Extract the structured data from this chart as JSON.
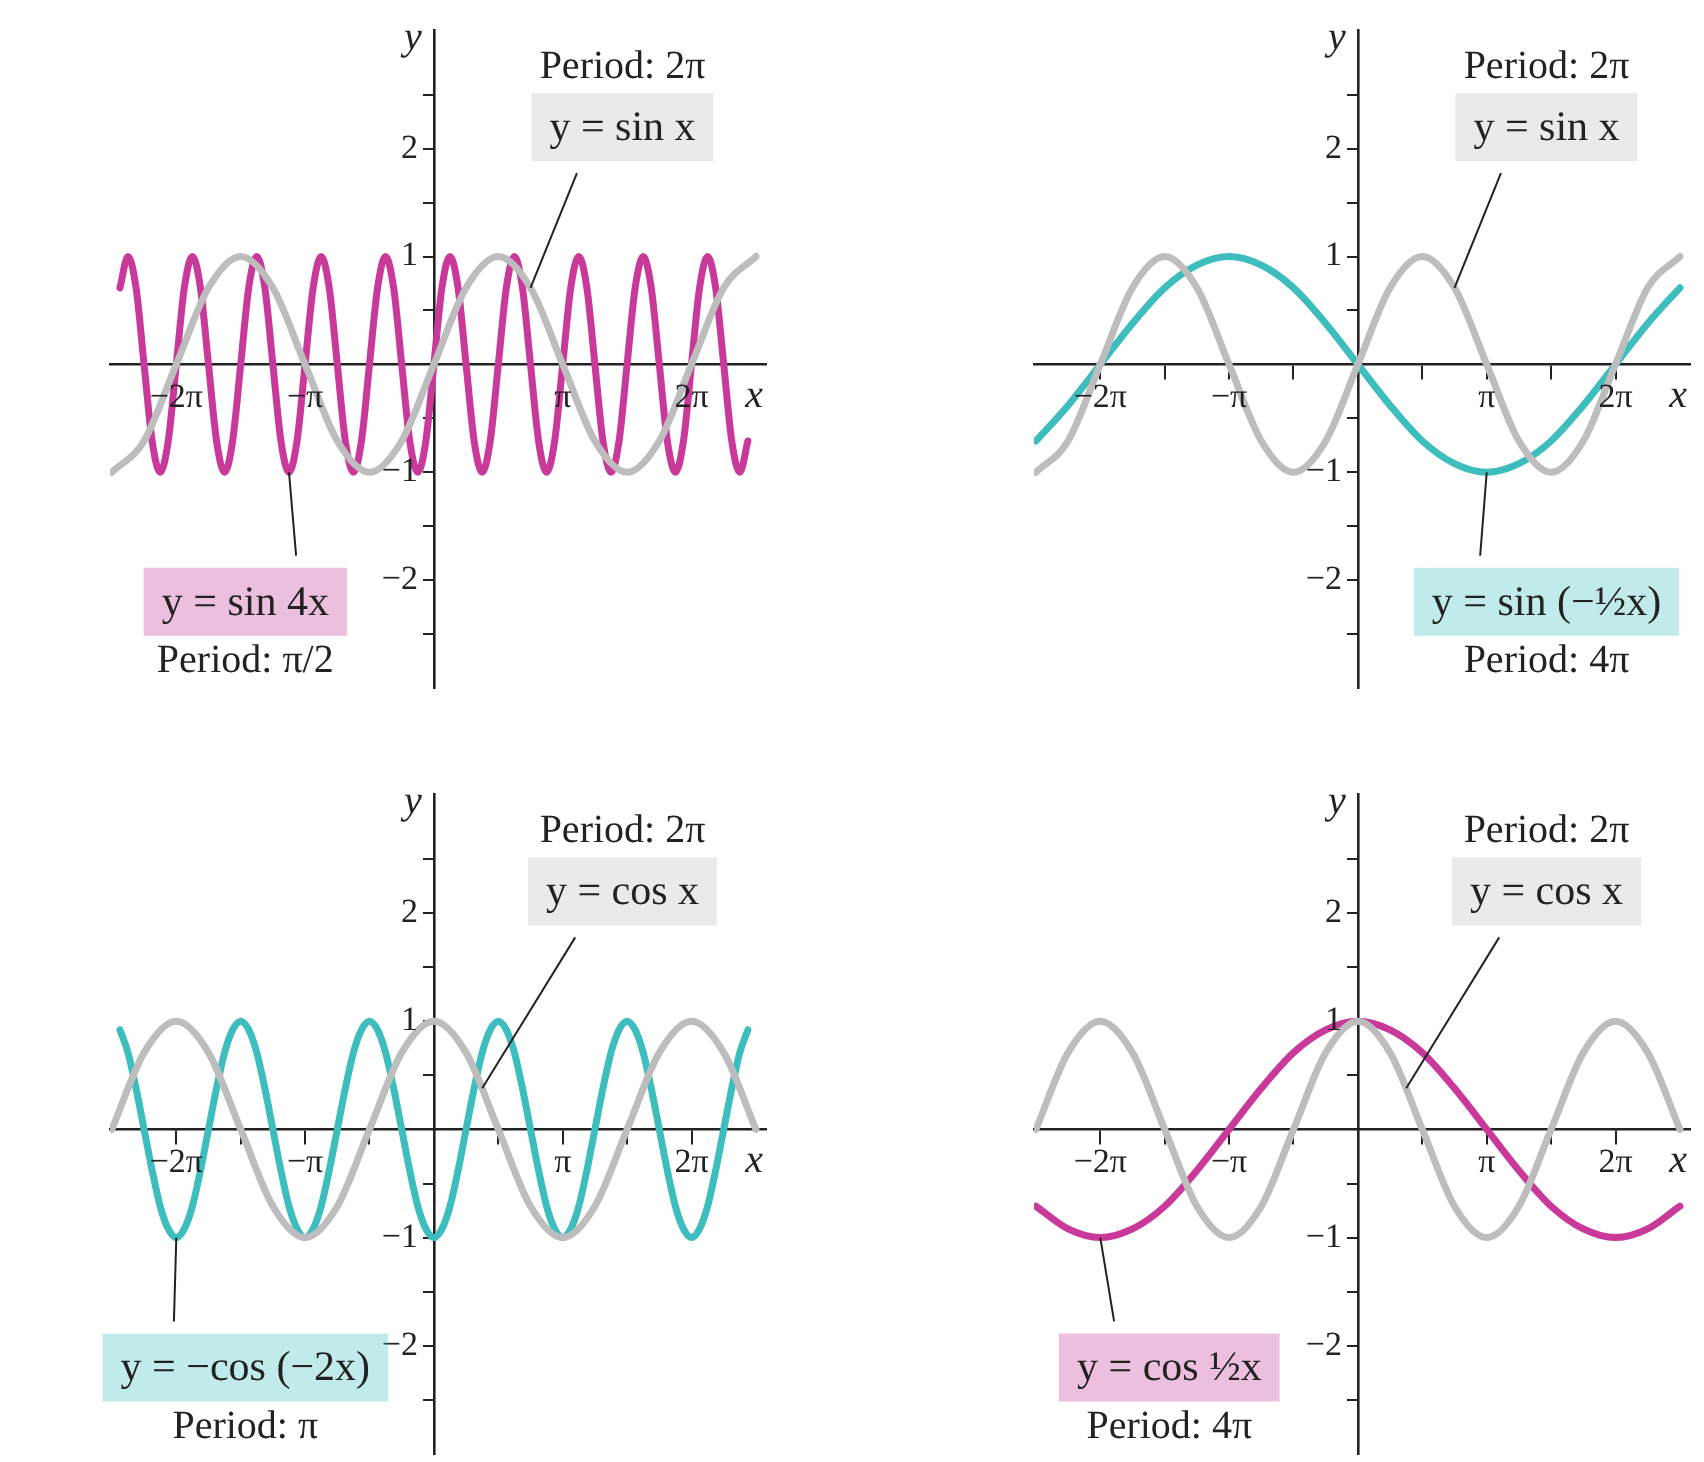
{
  "chart_data": [
    {
      "type": "line",
      "xlabel": "x",
      "ylabel": "y",
      "xlim": [
        -7.9,
        8.1
      ],
      "ylim": [
        -3,
        3.1
      ],
      "marker": "none",
      "xticks": [
        {
          "value": -6.283,
          "label": "−2π"
        },
        {
          "value": -4.712,
          "label": null
        },
        {
          "value": -3.142,
          "label": "−π"
        },
        {
          "value": -1.571,
          "label": null
        },
        {
          "value": 1.571,
          "label": null
        },
        {
          "value": 3.142,
          "label": "π"
        },
        {
          "value": 4.712,
          "label": null
        },
        {
          "value": 6.283,
          "label": "2π"
        }
      ],
      "yticks": [
        {
          "value": -2.5,
          "label": null
        },
        {
          "value": -2,
          "label": "−2"
        },
        {
          "value": -1.5,
          "label": null
        },
        {
          "value": -1,
          "label": "−1"
        },
        {
          "value": -0.5,
          "label": null
        },
        {
          "value": 0.5,
          "label": null
        },
        {
          "value": 1,
          "label": "1"
        },
        {
          "value": 1.5,
          "label": null
        },
        {
          "value": 2,
          "label": "2"
        },
        {
          "value": 2.5,
          "label": null
        }
      ],
      "series": [
        {
          "color": "#bdbdbd",
          "x": [
            -7.854,
            -7.069,
            -6.283,
            -5.498,
            -4.712,
            -3.927,
            -3.142,
            -2.356,
            -1.571,
            -0.785,
            0,
            0.785,
            1.571,
            2.356,
            3.142,
            3.927,
            4.712,
            5.498,
            6.283,
            7.069,
            7.854
          ],
          "values": [
            -1,
            -0.71,
            0,
            0.71,
            1,
            0.71,
            0,
            -0.71,
            -1,
            -0.71,
            0,
            0.71,
            1,
            0.71,
            0,
            -0.71,
            -1,
            -0.71,
            0,
            0.71,
            1
          ]
        },
        {
          "color": "#c8399a",
          "x": [
            -7.658,
            -7.461,
            -7.265,
            -7.069,
            -6.872,
            -6.676,
            -6.48,
            -6.283,
            -6.087,
            -5.89,
            -5.694,
            -5.498,
            -5.301,
            -5.105,
            -4.909,
            -4.712,
            -4.516,
            -4.32,
            -4.123,
            -3.927,
            -3.731,
            -3.534,
            -3.338,
            -3.142,
            -2.945,
            -2.749,
            -2.553,
            -2.356,
            -2.16,
            -1.963,
            -1.767,
            -1.571,
            -1.374,
            -1.178,
            -0.982,
            -0.785,
            -0.589,
            -0.393,
            -0.196,
            0,
            0.196,
            0.393,
            0.589,
            0.785,
            0.982,
            1.178,
            1.374,
            1.571,
            1.767,
            1.963,
            2.16,
            2.356,
            2.553,
            2.749,
            2.945,
            3.142,
            3.338,
            3.534,
            3.731,
            3.927,
            4.123,
            4.32,
            4.516,
            4.712,
            4.909,
            5.105,
            5.301,
            5.498,
            5.694,
            5.89,
            6.087,
            6.283,
            6.48,
            6.676,
            6.872,
            7.069,
            7.265,
            7.461,
            7.658
          ],
          "values": [
            0.71,
            1,
            0.71,
            0,
            -0.71,
            -1,
            -0.71,
            0,
            0.71,
            1,
            0.71,
            0,
            -0.71,
            -1,
            -0.71,
            0,
            0.71,
            1,
            0.71,
            0,
            -0.71,
            -1,
            -0.71,
            0,
            0.71,
            1,
            0.71,
            0,
            -0.71,
            -1,
            -0.71,
            0,
            0.71,
            1,
            0.71,
            0,
            -0.71,
            -1,
            -0.71,
            0,
            0.71,
            1,
            0.71,
            0,
            -0.71,
            -1,
            -0.71,
            0,
            0.71,
            1,
            0.71,
            0,
            -0.71,
            -1,
            -0.71,
            0,
            0.71,
            1,
            0.71,
            0,
            -0.71,
            -1,
            -0.71,
            0,
            0.71,
            1,
            0.71,
            0,
            -0.71,
            -1,
            -0.71,
            0,
            0.71,
            1,
            0.71,
            0,
            -0.71,
            -1,
            -0.71
          ]
        }
      ],
      "annotations": [
        {
          "text": "y = sin x",
          "x": 2.356,
          "y": 0.71
        },
        "Period: 2π",
        {
          "text": "y = sin 4x",
          "x": -3.534,
          "y": -1
        },
        "Period: π/2"
      ]
    },
    {
      "type": "line",
      "xlabel": "x",
      "ylabel": "y",
      "xlim": [
        -7.9,
        8.1
      ],
      "ylim": [
        -3,
        3.1
      ],
      "marker": "none",
      "xticks": [
        {
          "value": -6.283,
          "label": "−2π"
        },
        {
          "value": -4.712,
          "label": null
        },
        {
          "value": -3.142,
          "label": "−π"
        },
        {
          "value": -1.571,
          "label": null
        },
        {
          "value": 1.571,
          "label": null
        },
        {
          "value": 3.142,
          "label": "π"
        },
        {
          "value": 4.712,
          "label": null
        },
        {
          "value": 6.283,
          "label": "2π"
        }
      ],
      "yticks": [
        {
          "value": -2.5,
          "label": null
        },
        {
          "value": -2,
          "label": "−2"
        },
        {
          "value": -1.5,
          "label": null
        },
        {
          "value": -1,
          "label": "−1"
        },
        {
          "value": -0.5,
          "label": null
        },
        {
          "value": 0.5,
          "label": null
        },
        {
          "value": 1,
          "label": "1"
        },
        {
          "value": 1.5,
          "label": null
        },
        {
          "value": 2,
          "label": "2"
        },
        {
          "value": 2.5,
          "label": null
        }
      ],
      "series": [
        {
          "color": "#bdbdbd",
          "x": [
            -7.854,
            -7.069,
            -6.283,
            -5.498,
            -4.712,
            -3.927,
            -3.142,
            -2.356,
            -1.571,
            -0.785,
            0,
            0.785,
            1.571,
            2.356,
            3.142,
            3.927,
            4.712,
            5.498,
            6.283,
            7.069,
            7.854
          ],
          "values": [
            -1,
            -0.71,
            0,
            0.71,
            1,
            0.71,
            0,
            -0.71,
            -1,
            -0.71,
            0,
            0.71,
            1,
            0.71,
            0,
            -0.71,
            -1,
            -0.71,
            0,
            0.71,
            1
          ]
        },
        {
          "color": "#3dbdbd",
          "x": [
            -7.854,
            -7.069,
            -6.283,
            -5.498,
            -4.712,
            -3.927,
            -3.142,
            -2.356,
            -1.571,
            -0.785,
            0,
            0.785,
            1.571,
            2.356,
            3.142,
            3.927,
            4.712,
            5.498,
            6.283,
            7.069,
            7.854
          ],
          "values": [
            -0.71,
            -0.38,
            0,
            0.38,
            0.71,
            0.92,
            1,
            0.92,
            0.71,
            0.38,
            0,
            -0.38,
            -0.71,
            -0.92,
            -1,
            -0.92,
            -0.71,
            -0.38,
            0,
            0.38,
            0.71
          ]
        }
      ],
      "annotations": [
        {
          "text": "y = sin x",
          "x": 2.356,
          "y": 0.71
        },
        "Period: 2π",
        {
          "text": "y = sin (−½x)",
          "x": 3.142,
          "y": -1
        },
        "Period: 4π"
      ]
    },
    {
      "type": "line",
      "xlabel": "x",
      "ylabel": "y",
      "xlim": [
        -7.9,
        8.1
      ],
      "ylim": [
        -3,
        3.1
      ],
      "marker": "none",
      "xticks": [
        {
          "value": -6.283,
          "label": "−2π"
        },
        {
          "value": -4.712,
          "label": null
        },
        {
          "value": -3.142,
          "label": "−π"
        },
        {
          "value": -1.571,
          "label": null
        },
        {
          "value": 1.571,
          "label": null
        },
        {
          "value": 3.142,
          "label": "π"
        },
        {
          "value": 4.712,
          "label": null
        },
        {
          "value": 6.283,
          "label": "2π"
        }
      ],
      "yticks": [
        {
          "value": -2.5,
          "label": null
        },
        {
          "value": -2,
          "label": "−2"
        },
        {
          "value": -1.5,
          "label": null
        },
        {
          "value": -1,
          "label": "−1"
        },
        {
          "value": -0.5,
          "label": null
        },
        {
          "value": 0.5,
          "label": null
        },
        {
          "value": 1,
          "label": "1"
        },
        {
          "value": 1.5,
          "label": null
        },
        {
          "value": 2,
          "label": "2"
        },
        {
          "value": 2.5,
          "label": null
        }
      ],
      "series": [
        {
          "color": "#bdbdbd",
          "x": [
            -7.854,
            -7.069,
            -6.283,
            -5.498,
            -4.712,
            -3.927,
            -3.142,
            -2.356,
            -1.571,
            -0.785,
            0,
            0.785,
            1.571,
            2.356,
            3.142,
            3.927,
            4.712,
            5.498,
            6.283,
            7.069,
            7.854
          ],
          "values": [
            0,
            0.71,
            1,
            0.71,
            0,
            -0.71,
            -1,
            -0.71,
            0,
            0.71,
            1,
            0.71,
            0,
            -0.71,
            -1,
            -0.71,
            0,
            0.71,
            1,
            0.71,
            0
          ]
        },
        {
          "color": "#3dbdbd",
          "x": [
            -7.658,
            -7.461,
            -7.265,
            -7.069,
            -6.872,
            -6.676,
            -6.48,
            -6.283,
            -6.087,
            -5.89,
            -5.694,
            -5.498,
            -5.301,
            -5.105,
            -4.909,
            -4.712,
            -4.516,
            -4.32,
            -4.123,
            -3.927,
            -3.731,
            -3.534,
            -3.338,
            -3.142,
            -2.945,
            -2.749,
            -2.553,
            -2.356,
            -2.16,
            -1.963,
            -1.767,
            -1.571,
            -1.374,
            -1.178,
            -0.982,
            -0.785,
            -0.589,
            -0.393,
            -0.196,
            0,
            0.196,
            0.393,
            0.589,
            0.785,
            0.982,
            1.178,
            1.374,
            1.571,
            1.767,
            1.963,
            2.16,
            2.356,
            2.553,
            2.749,
            2.945,
            3.142,
            3.338,
            3.534,
            3.731,
            3.927,
            4.123,
            4.32,
            4.516,
            4.712,
            4.909,
            5.105,
            5.301,
            5.498,
            5.694,
            5.89,
            6.087,
            6.283,
            6.48,
            6.676,
            6.872,
            7.069,
            7.265,
            7.461,
            7.658
          ],
          "values": [
            0.92,
            0.71,
            0.38,
            0,
            -0.38,
            -0.71,
            -0.92,
            -1,
            -0.92,
            -0.71,
            -0.38,
            0,
            0.38,
            0.71,
            0.92,
            1,
            0.92,
            0.71,
            0.38,
            0,
            -0.38,
            -0.71,
            -0.92,
            -1,
            -0.92,
            -0.71,
            -0.38,
            0,
            0.38,
            0.71,
            0.92,
            1,
            0.92,
            0.71,
            0.38,
            0,
            -0.38,
            -0.71,
            -0.92,
            -1,
            -0.92,
            -0.71,
            -0.38,
            0,
            0.38,
            0.71,
            0.92,
            1,
            0.92,
            0.71,
            0.38,
            0,
            -0.38,
            -0.71,
            -0.92,
            -1,
            -0.92,
            -0.71,
            -0.38,
            0,
            0.38,
            0.71,
            0.92,
            1,
            0.92,
            0.71,
            0.38,
            0,
            -0.38,
            -0.71,
            -0.92,
            -1,
            -0.92,
            -0.71,
            -0.38,
            0,
            0.38,
            0.71,
            0.92
          ]
        }
      ],
      "annotations": [
        {
          "text": "y = cos x",
          "x": 1.178,
          "y": 0.38
        },
        "Period: 2π",
        {
          "text": "y = −cos (−2x)",
          "x": -6.283,
          "y": -1
        },
        "Period: π"
      ]
    },
    {
      "type": "line",
      "xlabel": "x",
      "ylabel": "y",
      "xlim": [
        -7.9,
        8.1
      ],
      "ylim": [
        -3,
        3.1
      ],
      "marker": "none",
      "xticks": [
        {
          "value": -6.283,
          "label": "−2π"
        },
        {
          "value": -4.712,
          "label": null
        },
        {
          "value": -3.142,
          "label": "−π"
        },
        {
          "value": -1.571,
          "label": null
        },
        {
          "value": 1.571,
          "label": null
        },
        {
          "value": 3.142,
          "label": "π"
        },
        {
          "value": 4.712,
          "label": null
        },
        {
          "value": 6.283,
          "label": "2π"
        }
      ],
      "yticks": [
        {
          "value": -2.5,
          "label": null
        },
        {
          "value": -2,
          "label": "−2"
        },
        {
          "value": -1.5,
          "label": null
        },
        {
          "value": -1,
          "label": "−1"
        },
        {
          "value": -0.5,
          "label": null
        },
        {
          "value": 0.5,
          "label": null
        },
        {
          "value": 1,
          "label": "1"
        },
        {
          "value": 1.5,
          "label": null
        },
        {
          "value": 2,
          "label": "2"
        },
        {
          "value": 2.5,
          "label": null
        }
      ],
      "series": [
        {
          "color": "#bdbdbd",
          "x": [
            -7.854,
            -7.069,
            -6.283,
            -5.498,
            -4.712,
            -3.927,
            -3.142,
            -2.356,
            -1.571,
            -0.785,
            0,
            0.785,
            1.571,
            2.356,
            3.142,
            3.927,
            4.712,
            5.498,
            6.283,
            7.069,
            7.854
          ],
          "values": [
            0,
            0.71,
            1,
            0.71,
            0,
            -0.71,
            -1,
            -0.71,
            0,
            0.71,
            1,
            0.71,
            0,
            -0.71,
            -1,
            -0.71,
            0,
            0.71,
            1,
            0.71,
            0
          ]
        },
        {
          "color": "#c8399a",
          "x": [
            -7.854,
            -7.069,
            -6.283,
            -5.498,
            -4.712,
            -3.927,
            -3.142,
            -2.356,
            -1.571,
            -0.785,
            0,
            0.785,
            1.571,
            2.356,
            3.142,
            3.927,
            4.712,
            5.498,
            6.283,
            7.069,
            7.854
          ],
          "values": [
            -0.71,
            -0.92,
            -1,
            -0.92,
            -0.71,
            -0.38,
            0,
            0.38,
            0.71,
            0.92,
            1,
            0.92,
            0.71,
            0.38,
            0,
            -0.38,
            -0.71,
            -0.92,
            -1,
            -0.92,
            -0.71
          ]
        }
      ],
      "annotations": [
        {
          "text": "y = cos x",
          "x": 1.178,
          "y": 0.38
        },
        "Period: 2π",
        {
          "text": "y = cos ½x",
          "x": -6.283,
          "y": -1
        },
        "Period: 4π"
      ]
    }
  ]
}
